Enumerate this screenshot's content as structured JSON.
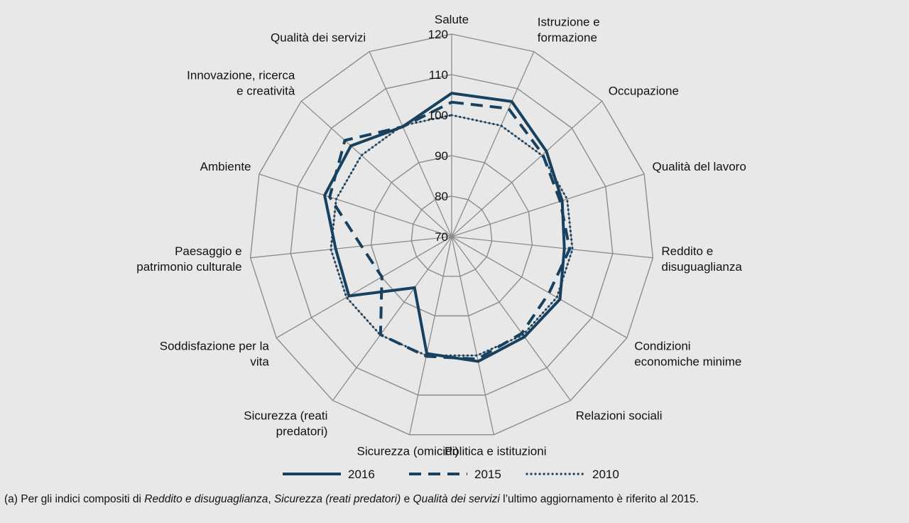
{
  "chart_data": {
    "type": "radar",
    "axes": [
      {
        "label": [
          "Salute"
        ]
      },
      {
        "label": [
          "Istruzione e",
          "formazione"
        ]
      },
      {
        "label": [
          "Occupazione"
        ]
      },
      {
        "label": [
          "Qualità del lavoro"
        ]
      },
      {
        "label": [
          "Reddito e",
          "disuguaglianza"
        ]
      },
      {
        "label": [
          "Condizioni",
          "economiche minime"
        ]
      },
      {
        "label": [
          "Relazioni sociali"
        ]
      },
      {
        "label": [
          "Politica e istituzioni"
        ]
      },
      {
        "label": [
          "Sicurezza (omicidi)"
        ]
      },
      {
        "label": [
          "Sicurezza (reati",
          "predatori)"
        ]
      },
      {
        "label": [
          "Soddisfazione per la",
          "vita"
        ]
      },
      {
        "label": [
          "Paesaggio e",
          "patrimonio culturale"
        ]
      },
      {
        "label": [
          "Ambiente"
        ]
      },
      {
        "label": [
          "Innovazione, ricerca",
          "e creatività"
        ]
      },
      {
        "label": [
          "Qualità dei servizi"
        ]
      }
    ],
    "rlim": [
      70,
      120
    ],
    "ticks": [
      70,
      80,
      90,
      100,
      110,
      120
    ],
    "series": [
      {
        "name": "2016",
        "style": "solid",
        "values": [
          105.4,
          106.5,
          101.5,
          98.7,
          98.0,
          100.9,
          100.6,
          101.5,
          99.5,
          85.6,
          99.3,
          98.8,
          103.0,
          103.5,
          99.7
        ]
      },
      {
        "name": "2015",
        "style": "dashed",
        "values": [
          103.2,
          104.6,
          100.3,
          98.2,
          99.3,
          97.8,
          99.5,
          100.9,
          100.2,
          99.9,
          89.9,
          92.4,
          101.7,
          105.5,
          99.7
        ]
      },
      {
        "name": "2010",
        "style": "dotted",
        "values": [
          100,
          100,
          100,
          100,
          100,
          100,
          100,
          100,
          100,
          100,
          100,
          100,
          100,
          100,
          100
        ]
      }
    ],
    "series_color": "#17415f",
    "grid_color": "#8c8c8c",
    "legend_position": "bottom"
  },
  "footnote": {
    "prefix": "(a) Per gli indici compositi di ",
    "item1": "Reddito e disuguaglianza",
    "sep1": ", ",
    "item2": "Sicurezza (reati predatori)",
    "sep2": " e ",
    "item3": "Qualità dei servizi",
    "suffix": " l’ultimo aggiornamento è riferito al 2015."
  }
}
